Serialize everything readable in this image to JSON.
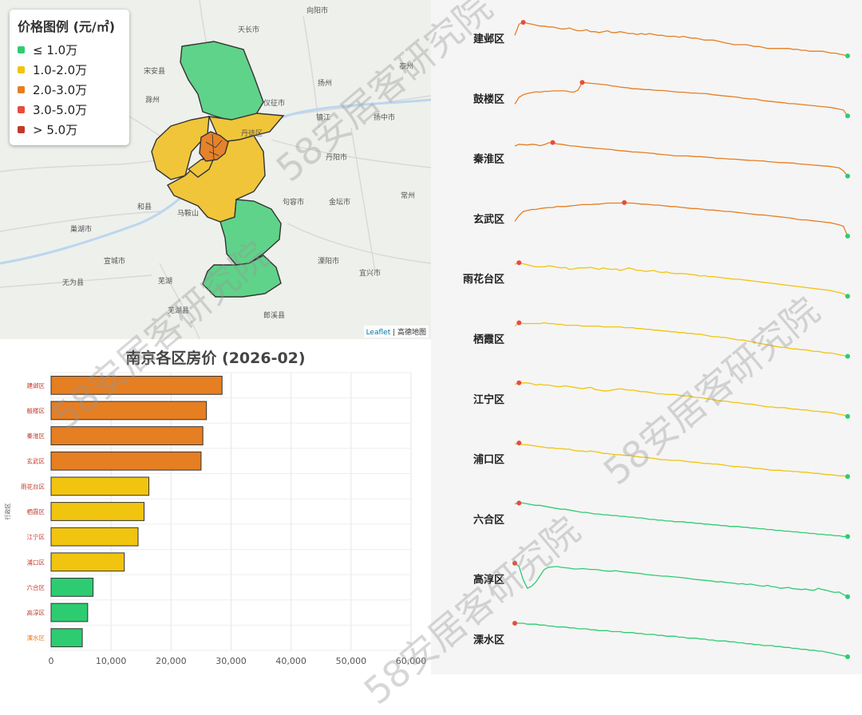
{
  "map": {
    "legend": {
      "title": "价格图例 (元/㎡)",
      "items": [
        {
          "label": "≤ 1.0万",
          "color": "#2ecc71"
        },
        {
          "label": "1.0-2.0万",
          "color": "#f1c40f"
        },
        {
          "label": "2.0-3.0万",
          "color": "#e67e22"
        },
        {
          "label": "3.0-5.0万",
          "color": "#e74c3c"
        },
        {
          "label": "> 5.0万",
          "color": "#c0392b"
        }
      ]
    },
    "attribution_link": "Leaflet",
    "attribution_rest": " | 高德地图",
    "place_labels": [
      "向阳市",
      "天长市",
      "宋安县",
      "滁州",
      "扬州",
      "泰州",
      "仪征市",
      "镇江",
      "丹阳市",
      "常州",
      "金坛市",
      "马鞍山",
      "和县",
      "芜湖",
      "无为县",
      "宣城市",
      "句容市",
      "溧阳市",
      "宜兴市",
      "郎溪县",
      "芜湖县",
      "巢湖市",
      "丹徒区",
      "扬中市"
    ]
  },
  "chart_data": {
    "type": "bar",
    "title": "南京各区房价 (2026-02)",
    "ylabel": "行政区",
    "xlabel": "",
    "categories": [
      "建邺区",
      "鼓楼区",
      "秦淮区",
      "玄武区",
      "雨花台区",
      "栖霞区",
      "江宁区",
      "浦口区",
      "六合区",
      "高淳区",
      "溧水区"
    ],
    "values": [
      28500,
      25900,
      25300,
      25000,
      16300,
      15500,
      14500,
      12200,
      7000,
      6100,
      5200
    ],
    "bar_colors": [
      "#e67e22",
      "#e67e22",
      "#e67e22",
      "#e67e22",
      "#f1c40f",
      "#f1c40f",
      "#f1c40f",
      "#f1c40f",
      "#2ecc71",
      "#2ecc71",
      "#2ecc71"
    ],
    "xlim": [
      0,
      60000
    ],
    "x_ticks": [
      "0",
      "10,000",
      "20,000",
      "30,000",
      "40,000",
      "50,000",
      "60,000"
    ],
    "grid": true
  },
  "sparklines": [
    {
      "name": "建邺区",
      "color": "#e67e22",
      "values": [
        36,
        24,
        22,
        23,
        24,
        25,
        26,
        26,
        27,
        27,
        28,
        29,
        29,
        28,
        30,
        31,
        31,
        30,
        32,
        32,
        33,
        32,
        31,
        33,
        33,
        32,
        33,
        34,
        34,
        35,
        34,
        35,
        34,
        35,
        36,
        36,
        37,
        37,
        37,
        38,
        37,
        38,
        39,
        39,
        40,
        41,
        41,
        41,
        42,
        43,
        44,
        45,
        46,
        46,
        46,
        46,
        47,
        48,
        48,
        49,
        50,
        50,
        50,
        50,
        50,
        50,
        51,
        51,
        52,
        52,
        53,
        53,
        53,
        53,
        54,
        55,
        55,
        56,
        57,
        58
      ]
    },
    {
      "name": "鼓楼区",
      "color": "#e67e22",
      "values": [
        72,
        56,
        50,
        47,
        45,
        43,
        44,
        42,
        42,
        41,
        41,
        41,
        41,
        43,
        44,
        39,
        21,
        22,
        23,
        24,
        25,
        26,
        27,
        29,
        30,
        32,
        33,
        34,
        36,
        36,
        37,
        38,
        38,
        39,
        40,
        40,
        41,
        42,
        43,
        44,
        44,
        45,
        46,
        46,
        47,
        47,
        48,
        50,
        51,
        52,
        53,
        54,
        55,
        56,
        58,
        59,
        60,
        60,
        62,
        64,
        65,
        66,
        67,
        68,
        69,
        71,
        71,
        72,
        73,
        74,
        75,
        76,
        77,
        78,
        79,
        80,
        82,
        84,
        86,
        100
      ]
    },
    {
      "name": "秦淮区",
      "color": "#e67e22",
      "values": [
        10,
        5,
        6,
        7,
        5,
        6,
        9,
        6,
        1,
        0,
        4,
        5,
        7,
        9,
        10,
        11,
        13,
        14,
        15,
        16,
        17,
        18,
        19,
        20,
        22,
        23,
        24,
        25,
        27,
        27,
        28,
        29,
        30,
        31,
        33,
        34,
        35,
        36,
        38,
        38,
        38,
        38,
        39,
        40,
        40,
        41,
        42,
        43,
        45,
        45,
        46,
        47,
        47,
        48,
        49,
        50,
        51,
        51,
        52,
        52,
        54,
        55,
        56,
        57,
        57,
        58,
        58,
        60,
        61,
        62,
        63,
        64,
        65,
        66,
        67,
        68,
        70,
        72,
        80,
        95
      ]
    },
    {
      "name": "玄武区",
      "color": "#e67e22",
      "values": [
        70,
        58,
        50,
        48,
        46,
        46,
        44,
        43,
        42,
        42,
        40,
        40,
        40,
        39,
        38,
        37,
        36,
        36,
        36,
        35,
        35,
        34,
        33,
        33,
        33,
        33,
        32,
        33,
        33,
        34,
        35,
        35,
        36,
        37,
        37,
        38,
        39,
        40,
        40,
        41,
        42,
        43,
        44,
        44,
        45,
        46,
        47,
        47,
        48,
        49,
        50,
        50,
        51,
        52,
        53,
        54,
        55,
        56,
        57,
        57,
        58,
        59,
        60,
        61,
        62,
        63,
        64,
        66,
        67,
        67,
        68,
        69,
        70,
        71,
        72,
        73,
        75,
        77,
        80,
        100
      ]
    },
    {
      "name": "雨花台区",
      "color": "#f1c40f",
      "values": [
        3,
        0,
        2,
        4,
        6,
        8,
        8,
        8,
        6,
        7,
        9,
        10,
        9,
        13,
        12,
        10,
        10,
        10,
        9,
        11,
        13,
        10,
        12,
        13,
        12,
        15,
        13,
        10,
        12,
        15,
        15,
        17,
        16,
        15,
        18,
        19,
        18,
        20,
        21,
        21,
        21,
        22,
        23,
        24,
        26,
        25,
        27,
        27,
        28,
        29,
        30,
        31,
        32,
        32,
        33,
        34,
        35,
        36,
        37,
        38,
        39,
        40,
        41,
        42,
        43,
        44,
        45,
        46,
        47,
        48,
        49,
        50,
        51,
        52,
        53,
        54,
        56,
        58,
        60,
        65
      ]
    },
    {
      "name": "栖霞区",
      "color": "#f1c40f",
      "values": [
        7,
        3,
        4,
        4,
        4,
        4,
        4,
        3,
        4,
        4,
        5,
        5,
        6,
        6,
        6,
        6,
        7,
        7,
        7,
        7,
        7,
        8,
        8,
        8,
        8,
        8,
        9,
        9,
        9,
        10,
        10,
        11,
        11,
        12,
        12,
        13,
        13,
        14,
        14,
        15,
        15,
        16,
        16,
        17,
        17,
        18,
        19,
        20,
        20,
        21,
        21,
        22,
        23,
        24,
        24,
        25,
        26,
        27,
        28,
        29,
        30,
        31,
        32,
        33,
        33,
        34,
        35,
        35,
        36,
        36,
        37,
        38,
        38,
        39,
        40,
        40,
        41,
        42,
        43,
        44
      ]
    },
    {
      "name": "江宁区",
      "color": "#f1c40f",
      "values": [
        4,
        2,
        2,
        2,
        3,
        5,
        4,
        5,
        5,
        6,
        7,
        7,
        6,
        7,
        8,
        9,
        10,
        9,
        8,
        11,
        12,
        13,
        13,
        12,
        11,
        10,
        11,
        12,
        12,
        13,
        14,
        14,
        15,
        16,
        17,
        17,
        18,
        18,
        18,
        19,
        20,
        20,
        21,
        22,
        22,
        23,
        24,
        25,
        26,
        27,
        27,
        28,
        29,
        29,
        30,
        31,
        31,
        32,
        33,
        34,
        35,
        35,
        36,
        36,
        36,
        37,
        38,
        38,
        39,
        39,
        40,
        41,
        41,
        42,
        42,
        43,
        44,
        45,
        46,
        48
      ]
    },
    {
      "name": "浦口区",
      "color": "#f1c40f",
      "values": [
        4,
        2,
        5,
        5,
        6,
        7,
        8,
        9,
        10,
        10,
        11,
        11,
        12,
        12,
        14,
        15,
        15,
        16,
        15,
        16,
        17,
        19,
        19,
        20,
        21,
        21,
        22,
        22,
        23,
        24,
        25,
        25,
        26,
        27,
        28,
        29,
        29,
        30,
        30,
        30,
        31,
        32,
        33,
        33,
        34,
        35,
        35,
        36,
        36,
        37,
        38,
        39,
        40,
        40,
        41,
        41,
        42,
        43,
        43,
        44,
        45,
        46,
        46,
        46,
        47,
        47,
        48,
        48,
        49,
        49,
        50,
        51,
        51,
        52,
        53,
        53,
        54,
        55,
        55,
        56
      ]
    },
    {
      "name": "六合区",
      "color": "#2ecc71",
      "values": [
        1,
        0,
        0,
        1,
        2,
        3,
        3,
        4,
        5,
        6,
        7,
        8,
        8,
        9,
        10,
        11,
        12,
        12,
        13,
        14,
        14,
        15,
        15,
        16,
        16,
        17,
        17,
        18,
        18,
        19,
        19,
        20,
        21,
        21,
        22,
        22,
        23,
        23,
        24,
        24,
        24,
        25,
        25,
        26,
        26,
        27,
        27,
        28,
        28,
        29,
        29,
        30,
        30,
        30,
        31,
        31,
        32,
        32,
        33,
        33,
        34,
        34,
        35,
        35,
        36,
        36,
        37,
        37,
        38,
        38,
        39,
        39,
        40,
        40,
        41,
        41,
        42,
        42,
        43,
        43
      ]
    },
    {
      "name": "高淳区",
      "color": "#2ecc71",
      "values": [
        0,
        8,
        40,
        60,
        55,
        45,
        30,
        15,
        10,
        9,
        8,
        10,
        11,
        12,
        14,
        14,
        13,
        14,
        15,
        15,
        16,
        18,
        19,
        19,
        18,
        20,
        21,
        22,
        23,
        24,
        25,
        27,
        28,
        29,
        30,
        31,
        31,
        32,
        33,
        34,
        35,
        36,
        38,
        39,
        40,
        41,
        42,
        43,
        45,
        44,
        46,
        47,
        48,
        50,
        49,
        51,
        50,
        52,
        54,
        55,
        53,
        56,
        57,
        60,
        59,
        58,
        61,
        62,
        63,
        62,
        64,
        65,
        60,
        63,
        65,
        68,
        70,
        69,
        75,
        80
      ]
    },
    {
      "name": "溧水区",
      "color": "#2ecc71",
      "values": [
        0,
        0,
        0,
        1,
        1,
        1,
        2,
        2,
        3,
        3,
        4,
        4,
        4,
        5,
        5,
        6,
        6,
        6,
        7,
        7,
        8,
        8,
        8,
        9,
        9,
        9,
        10,
        10,
        10,
        11,
        11,
        12,
        12,
        12,
        13,
        13,
        14,
        14,
        14,
        15,
        15,
        16,
        16,
        16,
        17,
        17,
        18,
        18,
        19,
        19,
        19,
        20,
        20,
        21,
        21,
        22,
        22,
        23,
        23,
        24,
        24,
        24,
        25,
        25,
        26,
        26,
        27,
        27,
        28,
        28,
        29,
        29,
        30,
        30,
        31,
        32,
        33,
        34,
        35,
        36
      ]
    }
  ],
  "watermarks": [
    "58安居客研究院",
    "58安居客研究院",
    "58安居客研究院",
    "58安居客研究院"
  ]
}
